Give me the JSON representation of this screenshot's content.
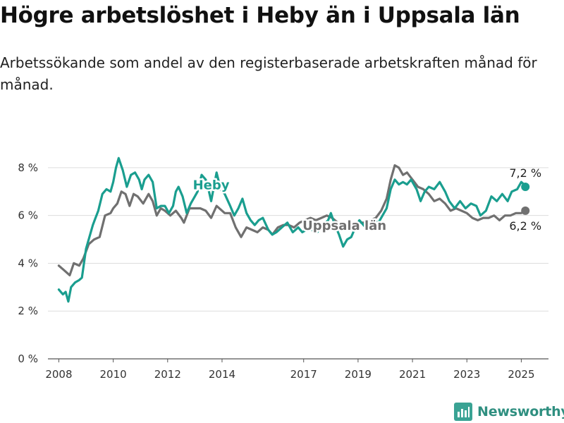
{
  "title": "Högre arbetslöshet i Heby än i Uppsala län",
  "subtitle": "Arbetssökande som andel av den registerbaserade arbetskraften månad för månad.",
  "brand": {
    "name": "Newsworthy",
    "icon": "newsworthy-logo-icon",
    "color": "#2f8f80"
  },
  "chart_data": {
    "type": "line",
    "xlim": [
      2007.6,
      2026.0
    ],
    "ylim": [
      0,
      9
    ],
    "y_ticks": [
      {
        "value": 0,
        "label": "0 %"
      },
      {
        "value": 2,
        "label": "2 %"
      },
      {
        "value": 4,
        "label": "4 %"
      },
      {
        "value": 6,
        "label": "6 %"
      },
      {
        "value": 8,
        "label": "8 %"
      }
    ],
    "x_ticks": [
      {
        "value": 2008,
        "label": "2008"
      },
      {
        "value": 2010,
        "label": "2010"
      },
      {
        "value": 2012,
        "label": "2012"
      },
      {
        "value": 2014,
        "label": "2014"
      },
      {
        "value": 2017,
        "label": "2017"
      },
      {
        "value": 2019,
        "label": "2019"
      },
      {
        "value": 2021,
        "label": "2021"
      },
      {
        "value": 2023,
        "label": "2023"
      },
      {
        "value": 2025,
        "label": "2025"
      }
    ],
    "grid": {
      "horizontal": true,
      "vertical": false
    },
    "series": [
      {
        "name": "Uppsala län",
        "color": "#707070",
        "end_label": "6,2 %",
        "label_at": [
          2018.5,
          5.4
        ],
        "points": [
          [
            2008.0,
            3.9
          ],
          [
            2008.2,
            3.7
          ],
          [
            2008.4,
            3.5
          ],
          [
            2008.55,
            4.0
          ],
          [
            2008.75,
            3.9
          ],
          [
            2008.9,
            4.2
          ],
          [
            2009.1,
            4.8
          ],
          [
            2009.3,
            5.0
          ],
          [
            2009.5,
            5.1
          ],
          [
            2009.7,
            6.0
          ],
          [
            2009.9,
            6.1
          ],
          [
            2010.0,
            6.3
          ],
          [
            2010.15,
            6.5
          ],
          [
            2010.3,
            7.0
          ],
          [
            2010.45,
            6.9
          ],
          [
            2010.6,
            6.4
          ],
          [
            2010.75,
            6.9
          ],
          [
            2010.9,
            6.8
          ],
          [
            2011.1,
            6.5
          ],
          [
            2011.3,
            6.9
          ],
          [
            2011.45,
            6.6
          ],
          [
            2011.6,
            6.0
          ],
          [
            2011.75,
            6.3
          ],
          [
            2011.9,
            6.2
          ],
          [
            2012.1,
            6.0
          ],
          [
            2012.3,
            6.2
          ],
          [
            2012.5,
            5.9
          ],
          [
            2012.6,
            5.7
          ],
          [
            2012.8,
            6.3
          ],
          [
            2013.0,
            6.3
          ],
          [
            2013.2,
            6.3
          ],
          [
            2013.4,
            6.2
          ],
          [
            2013.6,
            5.9
          ],
          [
            2013.8,
            6.4
          ],
          [
            2014.0,
            6.2
          ],
          [
            2014.1,
            6.1
          ],
          [
            2014.3,
            6.1
          ],
          [
            2014.5,
            5.5
          ],
          [
            2014.7,
            5.1
          ],
          [
            2014.9,
            5.5
          ],
          [
            2015.1,
            5.4
          ],
          [
            2015.3,
            5.3
          ],
          [
            2015.5,
            5.5
          ],
          [
            2015.7,
            5.4
          ],
          [
            2015.85,
            5.2
          ],
          [
            2016.05,
            5.5
          ],
          [
            2016.25,
            5.6
          ],
          [
            2016.45,
            5.6
          ],
          [
            2016.65,
            5.5
          ],
          [
            2016.85,
            5.7
          ],
          [
            2017.05,
            5.8
          ],
          [
            2017.25,
            5.9
          ],
          [
            2017.45,
            5.8
          ],
          [
            2017.65,
            5.9
          ],
          [
            2017.85,
            6.0
          ],
          [
            2018.05,
            5.9
          ],
          [
            2018.25,
            5.7
          ],
          [
            2018.45,
            5.6
          ],
          [
            2018.65,
            5.5
          ],
          [
            2018.85,
            5.6
          ],
          [
            2019.05,
            5.7
          ],
          [
            2019.25,
            5.7
          ],
          [
            2019.45,
            5.8
          ],
          [
            2019.65,
            5.9
          ],
          [
            2019.85,
            6.2
          ],
          [
            2020.05,
            6.7
          ],
          [
            2020.2,
            7.5
          ],
          [
            2020.35,
            8.1
          ],
          [
            2020.5,
            8.0
          ],
          [
            2020.65,
            7.7
          ],
          [
            2020.8,
            7.8
          ],
          [
            2021.0,
            7.5
          ],
          [
            2021.2,
            7.2
          ],
          [
            2021.4,
            7.1
          ],
          [
            2021.6,
            6.9
          ],
          [
            2021.8,
            6.6
          ],
          [
            2022.0,
            6.7
          ],
          [
            2022.2,
            6.5
          ],
          [
            2022.4,
            6.2
          ],
          [
            2022.6,
            6.3
          ],
          [
            2022.8,
            6.2
          ],
          [
            2023.0,
            6.1
          ],
          [
            2023.2,
            5.9
          ],
          [
            2023.4,
            5.8
          ],
          [
            2023.6,
            5.9
          ],
          [
            2023.8,
            5.9
          ],
          [
            2024.0,
            6.0
          ],
          [
            2024.2,
            5.8
          ],
          [
            2024.4,
            6.0
          ],
          [
            2024.6,
            6.0
          ],
          [
            2024.8,
            6.1
          ],
          [
            2025.0,
            6.1
          ],
          [
            2025.15,
            6.2
          ]
        ]
      },
      {
        "name": "Heby",
        "color": "#1a9e8f",
        "end_label": "7,2 %",
        "label_at": [
          2013.6,
          7.1
        ],
        "points": [
          [
            2008.0,
            2.9
          ],
          [
            2008.15,
            2.7
          ],
          [
            2008.25,
            2.8
          ],
          [
            2008.35,
            2.4
          ],
          [
            2008.45,
            3.0
          ],
          [
            2008.6,
            3.2
          ],
          [
            2008.75,
            3.3
          ],
          [
            2008.85,
            3.4
          ],
          [
            2009.0,
            4.6
          ],
          [
            2009.15,
            5.2
          ],
          [
            2009.25,
            5.6
          ],
          [
            2009.35,
            5.9
          ],
          [
            2009.45,
            6.2
          ],
          [
            2009.6,
            6.9
          ],
          [
            2009.75,
            7.1
          ],
          [
            2009.9,
            7.0
          ],
          [
            2010.0,
            7.4
          ],
          [
            2010.1,
            8.0
          ],
          [
            2010.2,
            8.4
          ],
          [
            2010.35,
            7.9
          ],
          [
            2010.5,
            7.2
          ],
          [
            2010.65,
            7.7
          ],
          [
            2010.8,
            7.8
          ],
          [
            2010.95,
            7.5
          ],
          [
            2011.05,
            7.1
          ],
          [
            2011.15,
            7.5
          ],
          [
            2011.3,
            7.7
          ],
          [
            2011.45,
            7.4
          ],
          [
            2011.6,
            6.3
          ],
          [
            2011.75,
            6.4
          ],
          [
            2011.9,
            6.4
          ],
          [
            2012.05,
            6.1
          ],
          [
            2012.2,
            6.4
          ],
          [
            2012.3,
            7.0
          ],
          [
            2012.4,
            7.2
          ],
          [
            2012.55,
            6.8
          ],
          [
            2012.7,
            6.1
          ],
          [
            2012.85,
            6.5
          ],
          [
            2013.0,
            6.8
          ],
          [
            2013.1,
            7.0
          ],
          [
            2013.25,
            7.7
          ],
          [
            2013.4,
            7.5
          ],
          [
            2013.5,
            7.1
          ],
          [
            2013.6,
            6.6
          ],
          [
            2013.7,
            7.2
          ],
          [
            2013.8,
            7.8
          ],
          [
            2013.95,
            7.1
          ],
          [
            2014.1,
            6.9
          ],
          [
            2014.3,
            6.4
          ],
          [
            2014.45,
            6.0
          ],
          [
            2014.6,
            6.3
          ],
          [
            2014.75,
            6.7
          ],
          [
            2014.9,
            6.1
          ],
          [
            2015.05,
            5.8
          ],
          [
            2015.2,
            5.6
          ],
          [
            2015.35,
            5.8
          ],
          [
            2015.5,
            5.9
          ],
          [
            2015.7,
            5.4
          ],
          [
            2015.85,
            5.2
          ],
          [
            2016.0,
            5.3
          ],
          [
            2016.2,
            5.5
          ],
          [
            2016.4,
            5.7
          ],
          [
            2016.6,
            5.3
          ],
          [
            2016.8,
            5.5
          ],
          [
            2016.95,
            5.3
          ],
          [
            2017.1,
            5.4
          ],
          [
            2017.3,
            5.4
          ],
          [
            2017.5,
            5.3
          ],
          [
            2017.7,
            5.6
          ],
          [
            2017.9,
            5.8
          ],
          [
            2018.0,
            6.1
          ],
          [
            2018.15,
            5.6
          ],
          [
            2018.3,
            5.2
          ],
          [
            2018.45,
            4.7
          ],
          [
            2018.6,
            5.0
          ],
          [
            2018.75,
            5.1
          ],
          [
            2018.9,
            5.5
          ],
          [
            2019.05,
            5.8
          ],
          [
            2019.2,
            5.6
          ],
          [
            2019.35,
            5.4
          ],
          [
            2019.55,
            5.8
          ],
          [
            2019.75,
            5.7
          ],
          [
            2019.9,
            6.0
          ],
          [
            2020.05,
            6.3
          ],
          [
            2020.2,
            7.1
          ],
          [
            2020.35,
            7.5
          ],
          [
            2020.5,
            7.3
          ],
          [
            2020.65,
            7.4
          ],
          [
            2020.8,
            7.3
          ],
          [
            2020.95,
            7.5
          ],
          [
            2021.15,
            7.1
          ],
          [
            2021.3,
            6.6
          ],
          [
            2021.45,
            7.0
          ],
          [
            2021.6,
            7.2
          ],
          [
            2021.8,
            7.1
          ],
          [
            2022.0,
            7.4
          ],
          [
            2022.2,
            7.0
          ],
          [
            2022.35,
            6.6
          ],
          [
            2022.55,
            6.3
          ],
          [
            2022.75,
            6.6
          ],
          [
            2022.95,
            6.3
          ],
          [
            2023.15,
            6.5
          ],
          [
            2023.35,
            6.4
          ],
          [
            2023.5,
            6.0
          ],
          [
            2023.7,
            6.2
          ],
          [
            2023.9,
            6.8
          ],
          [
            2024.1,
            6.6
          ],
          [
            2024.3,
            6.9
          ],
          [
            2024.5,
            6.6
          ],
          [
            2024.65,
            7.0
          ],
          [
            2024.85,
            7.1
          ],
          [
            2025.0,
            7.4
          ],
          [
            2025.1,
            7.3
          ],
          [
            2025.15,
            7.2
          ]
        ]
      }
    ]
  }
}
